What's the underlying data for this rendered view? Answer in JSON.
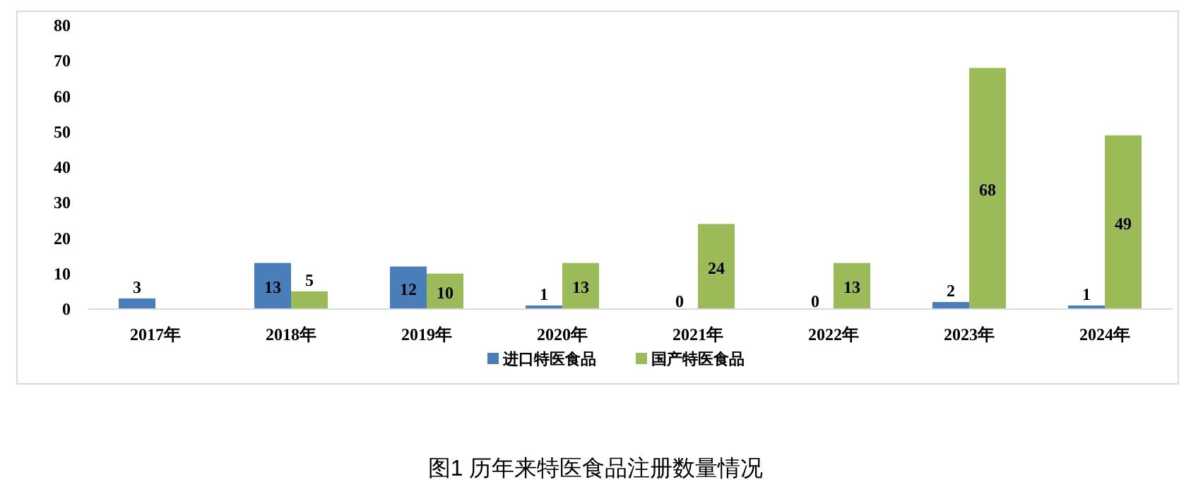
{
  "chart_data": {
    "type": "bar",
    "categories": [
      "2017年",
      "2018年",
      "2019年",
      "2020年",
      "2021年",
      "2022年",
      "2023年",
      "2024年"
    ],
    "series": [
      {
        "name": "进口特医食品",
        "color": "#4a7ebb",
        "values": [
          3,
          13,
          12,
          1,
          0,
          0,
          2,
          1
        ]
      },
      {
        "name": "国产特医食品",
        "color": "#9bbb59",
        "values": [
          null,
          5,
          10,
          13,
          24,
          13,
          68,
          49
        ]
      }
    ],
    "ylim": [
      0,
      80
    ],
    "yticks": [
      0,
      10,
      20,
      30,
      40,
      50,
      60,
      70,
      80
    ],
    "data_labels": true,
    "legend": "bottom",
    "grid": false,
    "annotations": [
      "图1 历年来特医食品注册数量情况"
    ]
  }
}
